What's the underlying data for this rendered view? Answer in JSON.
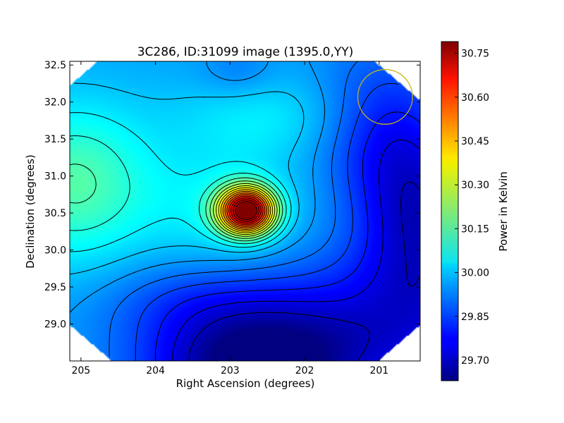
{
  "chart_data": {
    "type": "heatmap",
    "title": "3C286, ID:31099 image (1395.0,YY)",
    "xlabel": "Right Ascension (degrees)",
    "ylabel": "Declination (degrees)",
    "colorbar_label": "Power in Kelvin",
    "colormap": "jet",
    "x_axis_inverted": true,
    "xlim": [
      205.15,
      200.45
    ],
    "ylim": [
      28.5,
      32.55
    ],
    "x_ticks": [
      205,
      204,
      203,
      202,
      201
    ],
    "x_tick_labels": [
      "205",
      "204",
      "203",
      "202",
      "201"
    ],
    "y_ticks": [
      29.0,
      29.5,
      30.0,
      30.5,
      31.0,
      31.5,
      32.0,
      32.5
    ],
    "y_tick_labels": [
      "29.0",
      "29.5",
      "30.0",
      "30.5",
      "31.0",
      "31.5",
      "32.0",
      "32.5"
    ],
    "colorbar_range": [
      29.63,
      30.79
    ],
    "colorbar_ticks": [
      29.7,
      29.85,
      30.0,
      30.15,
      30.3,
      30.45,
      30.6,
      30.75
    ],
    "colorbar_tick_labels": [
      "29.70",
      "29.85",
      "30.00",
      "30.15",
      "30.30",
      "30.45",
      "30.60",
      "30.75"
    ],
    "peak": {
      "ra": 202.78,
      "dec": 30.53,
      "value": 30.78
    },
    "background_level": 29.96,
    "features": [
      {
        "label": "secondary warm region",
        "ra": 205.0,
        "dec": 30.9,
        "value": 30.16
      },
      {
        "label": "cold region",
        "ra": 202.7,
        "dec": 28.6,
        "value": 29.64
      },
      {
        "label": "cool region",
        "ra": 200.5,
        "dec": 30.4,
        "value": 29.74
      }
    ],
    "contours": true,
    "beam_circle": {
      "ra": 200.92,
      "dec": 32.07,
      "radius_deg": 0.37,
      "color": "#c8b416"
    },
    "colors": {
      "beam": "#c8b416",
      "contour": "#000000"
    }
  }
}
